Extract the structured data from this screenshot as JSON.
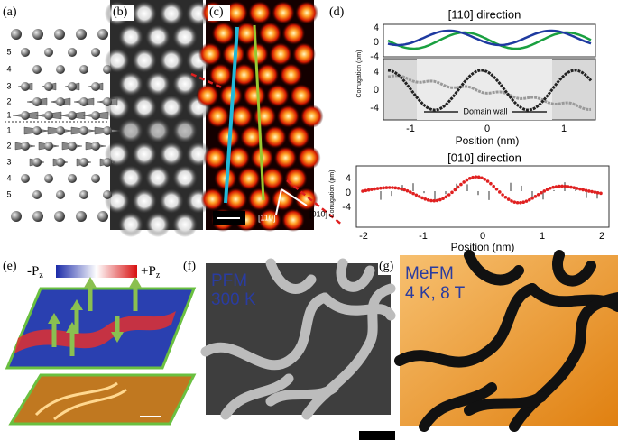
{
  "panels": {
    "a": {
      "label": "(a)",
      "rows": [
        "5",
        "4",
        "3",
        "2",
        "1",
        "1",
        "2",
        "3",
        "4",
        "5"
      ]
    },
    "b": {
      "label": "(b)"
    },
    "c": {
      "label": "(c)",
      "dir1": "[110]",
      "dir2": "[010]"
    },
    "d": {
      "label": "(d)",
      "top": {
        "title": "[110] direction",
        "yticks_upper": [
          "4",
          "0",
          "-4"
        ],
        "yticks_lower": [
          "4",
          "0",
          "-4"
        ],
        "xticks": [
          "-1",
          "0",
          "1"
        ],
        "xlabel": "Position (nm)",
        "ylabel": "Corrugation (pm)",
        "annotation": "Domain wall"
      },
      "bottom": {
        "title": "[010] direction",
        "yticks": [
          "4",
          "0",
          "-4"
        ],
        "xticks": [
          "-2",
          "-1",
          "0",
          "1",
          "2"
        ],
        "xlabel": "Position (nm)",
        "ylabel": "Corrugation (pm)"
      }
    },
    "e": {
      "label": "(e)",
      "minus": "-P",
      "plus": "+P",
      "sub": "z"
    },
    "f": {
      "label": "(f)",
      "line1": "PFM",
      "line2": "300 K"
    },
    "g": {
      "label": "(g)",
      "line1": "MeFM",
      "line2": "4 K, 8 T"
    }
  }
}
